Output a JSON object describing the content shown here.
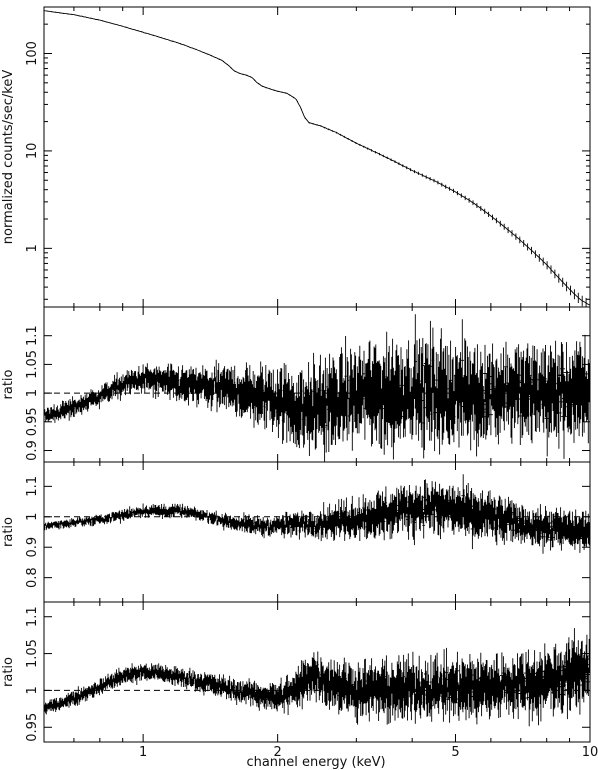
{
  "chart_data": [
    {
      "type": "line",
      "panel": "spectrum",
      "scale": "log-log",
      "xlim": [
        0.6,
        10
      ],
      "ylim": [
        0.25,
        300
      ],
      "ylabel": "normalized counts/sec/keV",
      "yticks": [
        {
          "v": 1,
          "label": "1"
        },
        {
          "v": 10,
          "label": "10"
        },
        {
          "v": 100,
          "label": "100"
        }
      ],
      "series": [
        {
          "x": [
            0.6,
            0.7,
            0.8,
            0.9,
            1.0,
            1.1,
            1.2,
            1.3,
            1.4,
            1.5,
            1.55,
            1.6,
            1.65,
            1.7,
            1.75,
            1.8,
            1.85,
            1.9,
            2.0,
            2.1,
            2.2,
            2.25,
            2.3,
            2.35,
            2.4,
            2.5,
            2.7,
            3.0,
            3.5,
            4.0,
            4.5,
            5.0,
            5.5,
            6.0,
            6.5,
            7.0,
            7.5,
            8.0,
            8.5,
            9.0,
            9.5,
            10.0
          ],
          "y": [
            275,
            250,
            220,
            190,
            165,
            145,
            128,
            112,
            98,
            85,
            76,
            66,
            62,
            60,
            57,
            50,
            46,
            44,
            41,
            39,
            34,
            28,
            22,
            19.5,
            19,
            18,
            15.5,
            12,
            8.6,
            6.3,
            4.9,
            3.8,
            2.9,
            2.15,
            1.6,
            1.2,
            0.9,
            0.68,
            0.5,
            0.38,
            0.3,
            0.26
          ]
        }
      ]
    },
    {
      "type": "line",
      "panel": "ratio-1",
      "xlim": [
        0.6,
        10
      ],
      "ylim": [
        0.88,
        1.15
      ],
      "ylabel": "ratio",
      "reference_line": 1,
      "yticks": [
        {
          "v": 0.9,
          "label": "0.9"
        },
        {
          "v": 0.95,
          "label": "0.95"
        },
        {
          "v": 1,
          "label": "1"
        },
        {
          "v": 1.05,
          "label": "1.05"
        },
        {
          "v": 1.1,
          "label": "1.1"
        }
      ],
      "series": [
        {
          "x": [
            0.6,
            0.7,
            0.8,
            0.9,
            1.0,
            1.1,
            1.2,
            1.4,
            1.6,
            1.8,
            2.0,
            2.2,
            2.3,
            2.5,
            3.0,
            3.5,
            4.0,
            5.0,
            6.0,
            7.0,
            8.0,
            9.0,
            10.0
          ],
          "y": [
            0.96,
            0.975,
            0.995,
            1.015,
            1.025,
            1.02,
            1.015,
            1.01,
            1.005,
            0.995,
            0.99,
            0.975,
            0.965,
            0.98,
            0.995,
            1.0,
            1.005,
            1.0,
            1.0,
            1.0,
            1.0,
            1.0,
            1.0
          ],
          "scatter": [
            0.008,
            0.01,
            0.01,
            0.012,
            0.014,
            0.016,
            0.018,
            0.02,
            0.025,
            0.03,
            0.035,
            0.04,
            0.045,
            0.045,
            0.05,
            0.055,
            0.055,
            0.055,
            0.05,
            0.05,
            0.05,
            0.05,
            0.05
          ]
        }
      ]
    },
    {
      "type": "line",
      "panel": "ratio-2",
      "xlim": [
        0.6,
        10
      ],
      "ylim": [
        0.72,
        1.18
      ],
      "ylabel": "ratio",
      "reference_line": 1,
      "yticks": [
        {
          "v": 0.8,
          "label": "0.8"
        },
        {
          "v": 0.9,
          "label": "0.9"
        },
        {
          "v": 1,
          "label": "1"
        },
        {
          "v": 1.1,
          "label": "1.1"
        }
      ],
      "series": [
        {
          "x": [
            0.6,
            0.8,
            1.0,
            1.2,
            1.4,
            1.6,
            1.8,
            2.0,
            2.2,
            2.5,
            3.0,
            3.5,
            4.0,
            4.5,
            5.0,
            6.0,
            7.0,
            8.0,
            9.0,
            10.0
          ],
          "y": [
            0.97,
            0.99,
            1.02,
            1.02,
            1.0,
            0.98,
            0.97,
            0.97,
            0.975,
            0.98,
            0.995,
            1.01,
            1.03,
            1.03,
            1.02,
            1.0,
            0.975,
            0.96,
            0.955,
            0.95
          ],
          "scatter": [
            0.008,
            0.01,
            0.012,
            0.012,
            0.012,
            0.015,
            0.018,
            0.02,
            0.025,
            0.03,
            0.04,
            0.045,
            0.05,
            0.05,
            0.05,
            0.045,
            0.04,
            0.04,
            0.04,
            0.04
          ]
        }
      ]
    },
    {
      "type": "line",
      "panel": "ratio-3",
      "xlim": [
        0.6,
        10
      ],
      "ylim": [
        0.93,
        1.12
      ],
      "ylabel": "ratio",
      "reference_line": 1,
      "yticks": [
        {
          "v": 0.95,
          "label": "0.95"
        },
        {
          "v": 1,
          "label": "1"
        },
        {
          "v": 1.05,
          "label": "1.05"
        },
        {
          "v": 1.1,
          "label": "1.1"
        }
      ],
      "series": [
        {
          "x": [
            0.6,
            0.7,
            0.8,
            0.9,
            1.0,
            1.1,
            1.2,
            1.4,
            1.6,
            1.8,
            2.0,
            2.2,
            2.3,
            2.4,
            2.5,
            3.0,
            3.5,
            4.0,
            5.0,
            6.0,
            7.0,
            8.0,
            9.0,
            10.0
          ],
          "y": [
            0.975,
            0.99,
            1.005,
            1.02,
            1.025,
            1.023,
            1.018,
            1.01,
            1.0,
            0.995,
            0.99,
            1.0,
            1.015,
            1.025,
            1.015,
            1.0,
            1.0,
            1.002,
            1.003,
            1.005,
            1.008,
            1.012,
            1.02,
            1.03
          ],
          "scatter": [
            0.005,
            0.006,
            0.006,
            0.007,
            0.007,
            0.007,
            0.008,
            0.008,
            0.009,
            0.01,
            0.012,
            0.015,
            0.018,
            0.018,
            0.02,
            0.022,
            0.024,
            0.025,
            0.025,
            0.025,
            0.025,
            0.028,
            0.03,
            0.03
          ]
        }
      ]
    }
  ],
  "x_axis": {
    "label": "channel energy (keV)",
    "scale": "log",
    "ticks": [
      {
        "v": 1,
        "label": "1"
      },
      {
        "v": 2,
        "label": "2"
      },
      {
        "v": 5,
        "label": "5"
      },
      {
        "v": 10,
        "label": "10"
      }
    ]
  }
}
